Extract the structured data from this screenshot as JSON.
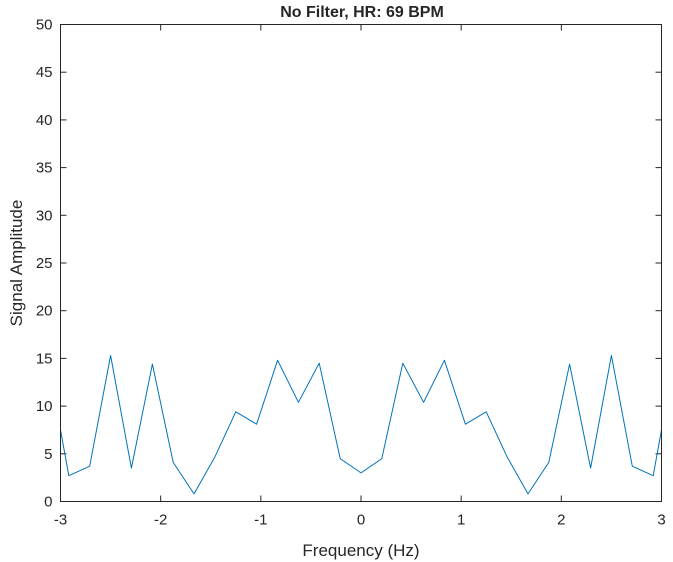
{
  "chart_data": {
    "type": "line",
    "title": "No Filter, HR: 69 BPM",
    "xlabel": "Frequency (Hz)",
    "ylabel": "Signal Amplitude",
    "xlim": [
      -3,
      3
    ],
    "ylim": [
      0,
      50
    ],
    "xticks": [
      -3,
      -2,
      -1,
      0,
      1,
      2,
      3
    ],
    "xtick_labels": [
      "-3",
      "-2",
      "-1",
      "0",
      "1",
      "2",
      "3"
    ],
    "yticks": [
      0,
      5,
      10,
      15,
      20,
      25,
      30,
      35,
      40,
      45,
      50
    ],
    "ytick_labels": [
      "0",
      "5",
      "10",
      "15",
      "20",
      "25",
      "30",
      "35",
      "40",
      "45",
      "50"
    ],
    "grid": false,
    "legend": "none",
    "series": [
      {
        "color": "#0072BD",
        "x": [
          -3.0,
          -2.917,
          -2.708,
          -2.5,
          -2.292,
          -2.083,
          -1.875,
          -1.667,
          -1.458,
          -1.25,
          -1.042,
          -0.833,
          -0.625,
          -0.417,
          -0.208,
          0.0,
          0.208,
          0.417,
          0.625,
          0.833,
          1.042,
          1.25,
          1.458,
          1.667,
          1.875,
          2.083,
          2.292,
          2.5,
          2.708,
          2.917,
          3.0
        ],
        "y": [
          7.5,
          2.7,
          3.7,
          15.3,
          3.5,
          14.4,
          4.1,
          0.8,
          4.7,
          9.4,
          8.1,
          14.8,
          10.4,
          14.5,
          4.5,
          3.0,
          4.5,
          14.5,
          10.4,
          14.8,
          8.1,
          9.4,
          4.7,
          0.8,
          4.1,
          14.4,
          3.5,
          15.3,
          3.7,
          2.7,
          7.5
        ]
      }
    ]
  }
}
